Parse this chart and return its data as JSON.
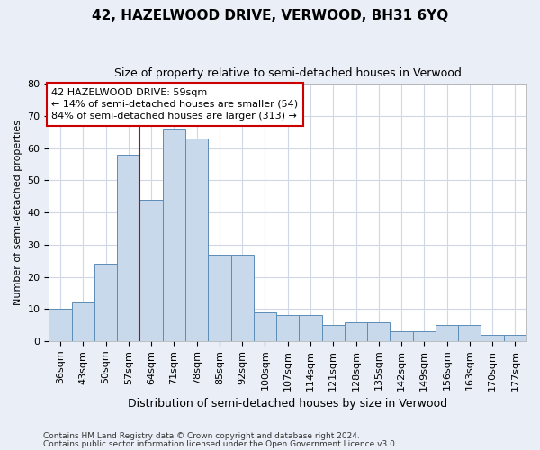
{
  "title": "42, HAZELWOOD DRIVE, VERWOOD, BH31 6YQ",
  "subtitle": "Size of property relative to semi-detached houses in Verwood",
  "xlabel": "Distribution of semi-detached houses by size in Verwood",
  "ylabel": "Number of semi-detached properties",
  "categories": [
    "36sqm",
    "43sqm",
    "50sqm",
    "57sqm",
    "64sqm",
    "71sqm",
    "78sqm",
    "85sqm",
    "92sqm",
    "100sqm",
    "107sqm",
    "114sqm",
    "121sqm",
    "128sqm",
    "135sqm",
    "142sqm",
    "149sqm",
    "156sqm",
    "163sqm",
    "170sqm",
    "177sqm"
  ],
  "values": [
    10,
    12,
    24,
    58,
    44,
    66,
    63,
    27,
    27,
    9,
    8,
    8,
    5,
    6,
    6,
    3,
    3,
    5,
    5,
    2,
    2
  ],
  "bar_color": "#c9d9ec",
  "bar_edge_color": "#5b8db8",
  "vline_color": "#cc0000",
  "vline_index": 3.5,
  "annotation_text": "42 HAZELWOOD DRIVE: 59sqm\n← 14% of semi-detached houses are smaller (54)\n84% of semi-detached houses are larger (313) →",
  "annotation_box_color": "#cc0000",
  "ylim": [
    0,
    80
  ],
  "yticks": [
    0,
    10,
    20,
    30,
    40,
    50,
    60,
    70,
    80
  ],
  "footnote1": "Contains HM Land Registry data © Crown copyright and database right 2024.",
  "footnote2": "Contains public sector information licensed under the Open Government Licence v3.0.",
  "bg_color": "#eaeff7",
  "plot_bg_color": "#ffffff",
  "grid_color": "#d0d8e8",
  "title_fontsize": 11,
  "subtitle_fontsize": 9,
  "xlabel_fontsize": 9,
  "ylabel_fontsize": 8,
  "tick_fontsize": 8,
  "annot_fontsize": 8
}
